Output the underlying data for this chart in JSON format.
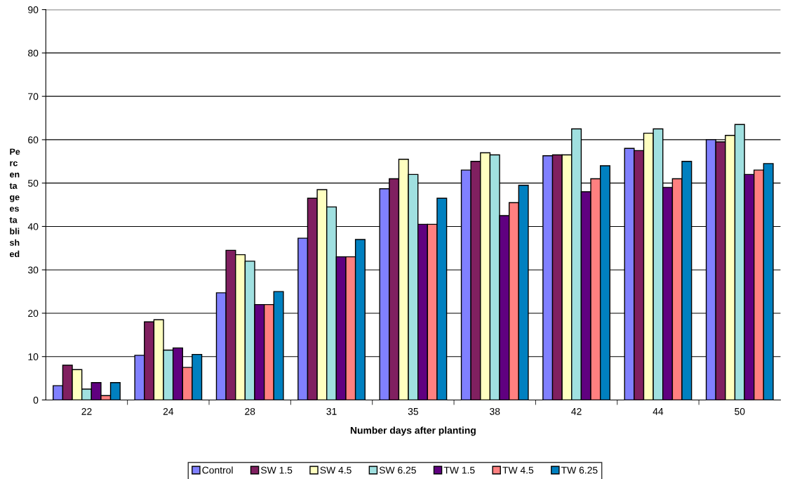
{
  "chart_data": {
    "type": "bar",
    "xlabel": "Number days after planting",
    "ylabel": "Pe\nrc\nen\nta\nge\nes\nta\nbli\nsh\ned",
    "categories": [
      "22",
      "24",
      "28",
      "31",
      "35",
      "38",
      "42",
      "44",
      "50"
    ],
    "series": [
      {
        "name": "Control",
        "color": "#8080ff",
        "values": [
          3.3,
          10.3,
          24.7,
          37.3,
          48.7,
          53,
          56.3,
          58,
          60
        ]
      },
      {
        "name": "SW 1.5",
        "color": "#802060",
        "values": [
          8,
          18,
          34.5,
          46.5,
          51,
          55,
          56.5,
          57.5,
          59.5
        ]
      },
      {
        "name": "SW 4.5",
        "color": "#ffffc0",
        "values": [
          7,
          18.5,
          33.5,
          48.5,
          55.5,
          57,
          56.5,
          61.5,
          61
        ]
      },
      {
        "name": "SW 6.25",
        "color": "#a0e0e0",
        "values": [
          2.5,
          11.5,
          32,
          44.5,
          52,
          56.5,
          62.5,
          62.5,
          63.5
        ]
      },
      {
        "name": "TW 1.5",
        "color": "#600080",
        "values": [
          4,
          12,
          22,
          33,
          40.5,
          42.5,
          48,
          49,
          52
        ]
      },
      {
        "name": "TW 4.5",
        "color": "#ff8080",
        "values": [
          1,
          7.5,
          22,
          33,
          40.5,
          45.5,
          51,
          51,
          53
        ]
      },
      {
        "name": "TW 6.25",
        "color": "#0080c0",
        "values": [
          4,
          10.5,
          25,
          37,
          46.5,
          49.5,
          54,
          55,
          54.5
        ]
      }
    ],
    "ylim": [
      0,
      90
    ],
    "yticks": [
      0,
      10,
      20,
      30,
      40,
      50,
      60,
      70,
      80,
      90
    ],
    "grid": "y",
    "legend": "bottom"
  }
}
